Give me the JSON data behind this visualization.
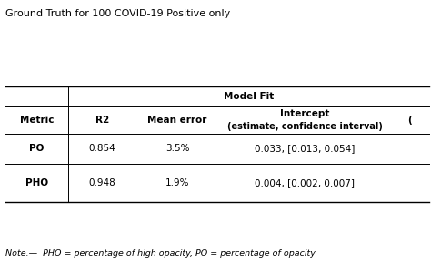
{
  "title": "Ground Truth for 100 COVID-19 Positive only",
  "note": "Note.—  PHO = percentage of high opacity, PO = percentage of opacity",
  "model_fit_label": "Model Fit",
  "rows": [
    [
      "PO",
      "0.854",
      "3.5%",
      "0.033, [0.013, 0.054]"
    ],
    [
      "PHO",
      "0.948",
      "1.9%",
      "0.004, [0.002, 0.007]"
    ]
  ],
  "background_color": "#ffffff",
  "text_color": "#000000",
  "title_fontsize": 8.0,
  "header_fontsize": 7.5,
  "cell_fontsize": 7.5,
  "note_fontsize": 6.8
}
